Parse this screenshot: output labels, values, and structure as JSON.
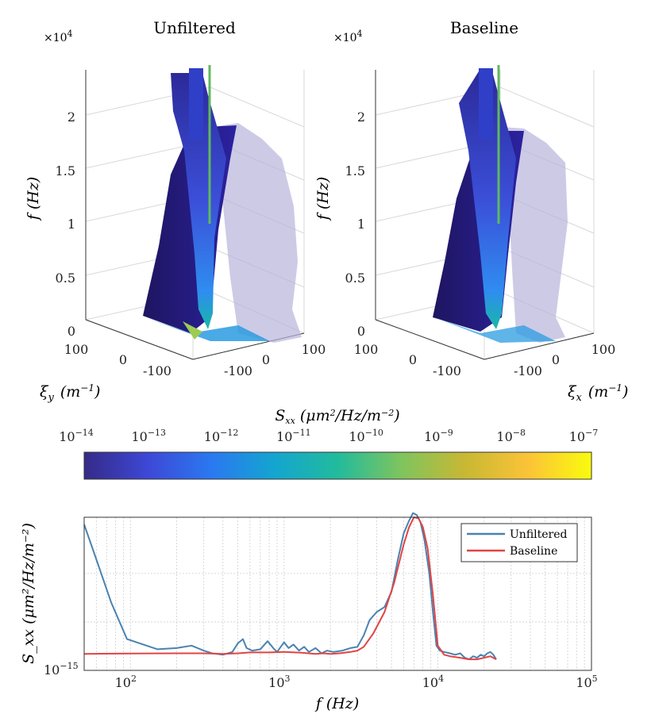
{
  "panels": [
    {
      "title": "Unfiltered",
      "multiplier": "×10",
      "multiplier_exp": "4",
      "z_label": "f (Hz)",
      "z_ticks": [
        "0",
        "0.5",
        "1",
        "1.5",
        "2"
      ],
      "left_ticks": [
        "100",
        "0",
        "-100"
      ],
      "right_ticks": [
        "-100",
        "0",
        "100"
      ],
      "axis_label_main": "ξ",
      "axis_label_sub": "y",
      "axis_label_rest": "(m",
      "axis_label_exp": "−1",
      "axis_label_close": ")"
    },
    {
      "title": "Baseline",
      "multiplier": "×10",
      "multiplier_exp": "4",
      "z_label": "f (Hz)",
      "z_ticks": [
        "0",
        "0.5",
        "1",
        "1.5",
        "2"
      ],
      "left_ticks": [
        "100",
        "0",
        "-100"
      ],
      "right_ticks": [
        "-100",
        "0",
        "100"
      ],
      "axis_label_main": "ξ",
      "axis_label_sub": "x",
      "axis_label_rest": "(m",
      "axis_label_exp": "−1",
      "axis_label_close": ")"
    }
  ],
  "colorbar": {
    "label_main": "S",
    "label_sub": "xx",
    "label_rest": "(μm",
    "label_sup": "2",
    "label_tail": "/Hz/m",
    "label_sup2": "−2",
    "label_close": ")",
    "tick_base": "10",
    "tick_exps": [
      "−14",
      "−13",
      "−12",
      "−11",
      "−10",
      "−9",
      "−8",
      "−7"
    ],
    "colors": [
      "#352a87",
      "#3d48d6",
      "#2b78f0",
      "#14a5d0",
      "#22bb9c",
      "#7fc45e",
      "#c8b834",
      "#fbc337",
      "#f9fb0e"
    ]
  },
  "chart_data": {
    "type": "line",
    "xlabel": "f (Hz)",
    "ylabel": "S_xx (μm²/Hz/m⁻²)",
    "xscale": "log",
    "yscale": "log",
    "xlim": [
      50,
      100000
    ],
    "x_tick_base": "10",
    "x_tick_exps": [
      "2",
      "3",
      "4",
      "5"
    ],
    "y_tick_label_base": "10",
    "y_tick_label_exp": "−15",
    "grid": true,
    "legend_position": "top-right",
    "series": [
      {
        "name": "Unfiltered",
        "color": "#4a82b0",
        "x": [
          50,
          60,
          75,
          95,
          150,
          200,
          250,
          300,
          340,
          400,
          460,
          500,
          540,
          570,
          620,
          700,
          780,
          850,
          900,
          1000,
          1070,
          1150,
          1250,
          1350,
          1450,
          1600,
          1750,
          1900,
          2100,
          2400,
          2700,
          3000,
          3300,
          3600,
          4000,
          4500,
          5000,
          5500,
          6000,
          6500,
          6900,
          7300,
          7700,
          8200,
          8800,
          9300,
          9800,
          10300,
          11000,
          12000,
          13000,
          14000,
          15000,
          16000,
          17000,
          18000,
          19000,
          20000,
          21000,
          22000,
          23000,
          24000
        ],
        "y": [
          3.2e-14,
          1.4e-14,
          5e-15,
          2.1e-15,
          1.65e-15,
          1.7e-15,
          1.8e-15,
          1.6e-15,
          1.5e-15,
          1.45e-15,
          1.55e-15,
          1.9e-15,
          2.1e-15,
          1.7e-15,
          1.6e-15,
          1.65e-15,
          2e-15,
          1.7e-15,
          1.55e-15,
          1.95e-15,
          1.7e-15,
          1.85e-15,
          1.6e-15,
          1.75e-15,
          1.55e-15,
          1.7e-15,
          1.5e-15,
          1.6e-15,
          1.55e-15,
          1.6e-15,
          1.7e-15,
          1.75e-15,
          2.3e-15,
          3.3e-15,
          4e-15,
          4.5e-15,
          6.5e-15,
          1.4e-14,
          2.6e-14,
          3.5e-14,
          4.2e-14,
          4e-14,
          3.4e-14,
          2.2e-14,
          1e-14,
          4e-15,
          1.8e-15,
          1.6e-15,
          1.55e-15,
          1.5e-15,
          1.45e-15,
          1.5e-15,
          1.35e-15,
          1.3e-15,
          1.4e-15,
          1.35e-15,
          1.45e-15,
          1.4e-15,
          1.5e-15,
          1.55e-15,
          1.45e-15,
          1.3e-15
        ]
      },
      {
        "name": "Baseline",
        "color": "#e04444",
        "x": [
          50,
          100,
          200,
          300,
          400,
          500,
          600,
          800,
          1000,
          1300,
          1600,
          1800,
          2000,
          2300,
          2700,
          3000,
          3300,
          3800,
          4500,
          5200,
          6000,
          6500,
          7000,
          7500,
          8000,
          8600,
          9300,
          10000,
          11000,
          12000,
          14000,
          16000,
          18000,
          20000,
          22000,
          24000
        ],
        "y": [
          1.48e-15,
          1.49e-15,
          1.5e-15,
          1.5e-15,
          1.48e-15,
          1.5e-15,
          1.53e-15,
          1.53e-15,
          1.55e-15,
          1.52e-15,
          1.48e-15,
          1.5e-15,
          1.48e-15,
          1.5e-15,
          1.55e-15,
          1.6e-15,
          1.75e-15,
          2.4e-15,
          4e-15,
          8e-15,
          2e-14,
          3e-14,
          3.8e-14,
          3.7e-14,
          3e-14,
          1.8e-14,
          6e-15,
          1.8e-15,
          1.45e-15,
          1.4e-15,
          1.35e-15,
          1.3e-15,
          1.3e-15,
          1.35e-15,
          1.4e-15,
          1.3e-15
        ]
      }
    ]
  }
}
